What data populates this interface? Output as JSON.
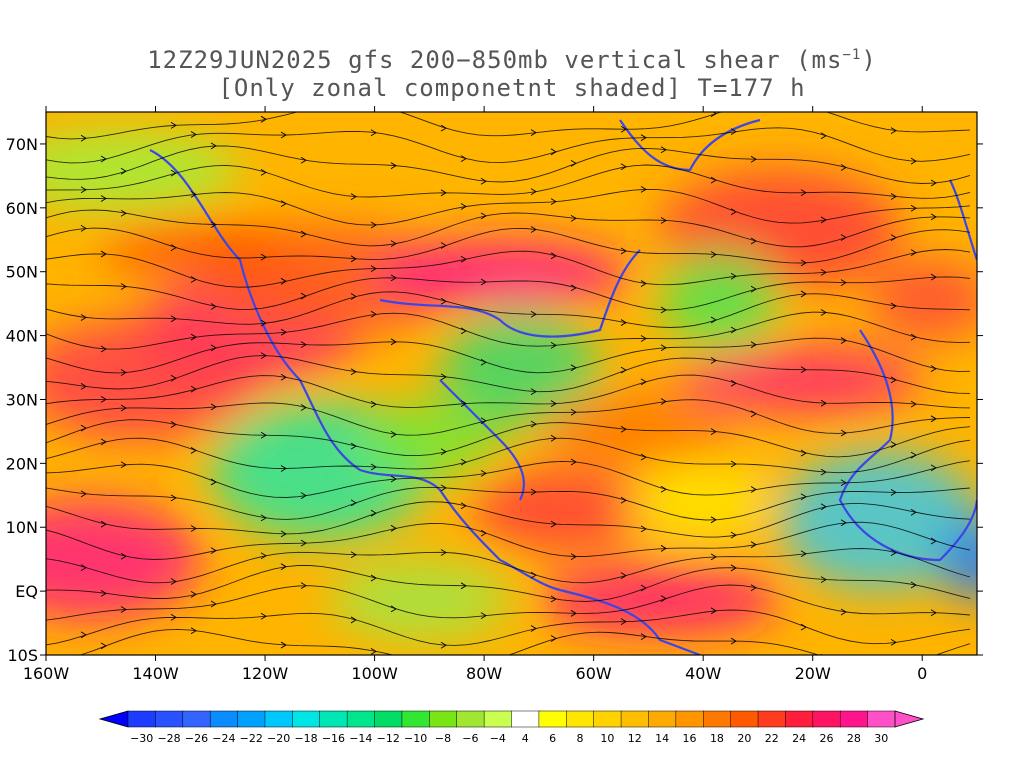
{
  "title": {
    "line1_prefix": "12Z29JUN2025 gfs 200−850mb vertical shear (ms",
    "line1_sup": "−1",
    "line1_suffix": ")",
    "line2": "[Only zonal componetnt shaded] T=177 h"
  },
  "map": {
    "lon_min": -160,
    "lon_max": 10,
    "lat_min": -10,
    "lat_max": 75,
    "lat_ticks": [
      {
        "value": 70,
        "label": "70N"
      },
      {
        "value": 60,
        "label": "60N"
      },
      {
        "value": 50,
        "label": "50N"
      },
      {
        "value": 40,
        "label": "40N"
      },
      {
        "value": 30,
        "label": "30N"
      },
      {
        "value": 20,
        "label": "20N"
      },
      {
        "value": 10,
        "label": "10N"
      },
      {
        "value": 0,
        "label": "EQ"
      },
      {
        "value": -10,
        "label": "10S"
      }
    ],
    "lon_ticks": [
      {
        "value": -160,
        "label": "160W"
      },
      {
        "value": -140,
        "label": "140W"
      },
      {
        "value": -120,
        "label": "120W"
      },
      {
        "value": -100,
        "label": "100W"
      },
      {
        "value": -80,
        "label": "80W"
      },
      {
        "value": -60,
        "label": "60W"
      },
      {
        "value": -40,
        "label": "40W"
      },
      {
        "value": -20,
        "label": "20W"
      },
      {
        "value": 0,
        "label": "0"
      }
    ]
  },
  "colorbar": {
    "labels": [
      "-30",
      "-28",
      "-26",
      "-24",
      "-22",
      "-20",
      "-18",
      "-16",
      "-14",
      "-12",
      "-10",
      "-8",
      "-6",
      "-4",
      "4",
      "6",
      "8",
      "10",
      "12",
      "14",
      "16",
      "18",
      "20",
      "22",
      "24",
      "26",
      "28",
      "30"
    ],
    "colors": [
      "#1e3cff",
      "#2852ff",
      "#3264ff",
      "#0a8cff",
      "#00a0ff",
      "#00c8ff",
      "#00e6e6",
      "#00e6b4",
      "#00e68c",
      "#00dc64",
      "#32e632",
      "#78e614",
      "#a0e632",
      "#c8ff50",
      "#ffffff",
      "#ffff00",
      "#ffe600",
      "#ffd200",
      "#ffbe00",
      "#ffaa00",
      "#ff9600",
      "#ff7800",
      "#ff5a00",
      "#ff3c1e",
      "#ff1e3c",
      "#ff1464",
      "#ff148c",
      "#ff50c8"
    ]
  },
  "legend": {
    "min_arrow_color": "#0000ff",
    "max_arrow_color": "#ff50c8"
  }
}
